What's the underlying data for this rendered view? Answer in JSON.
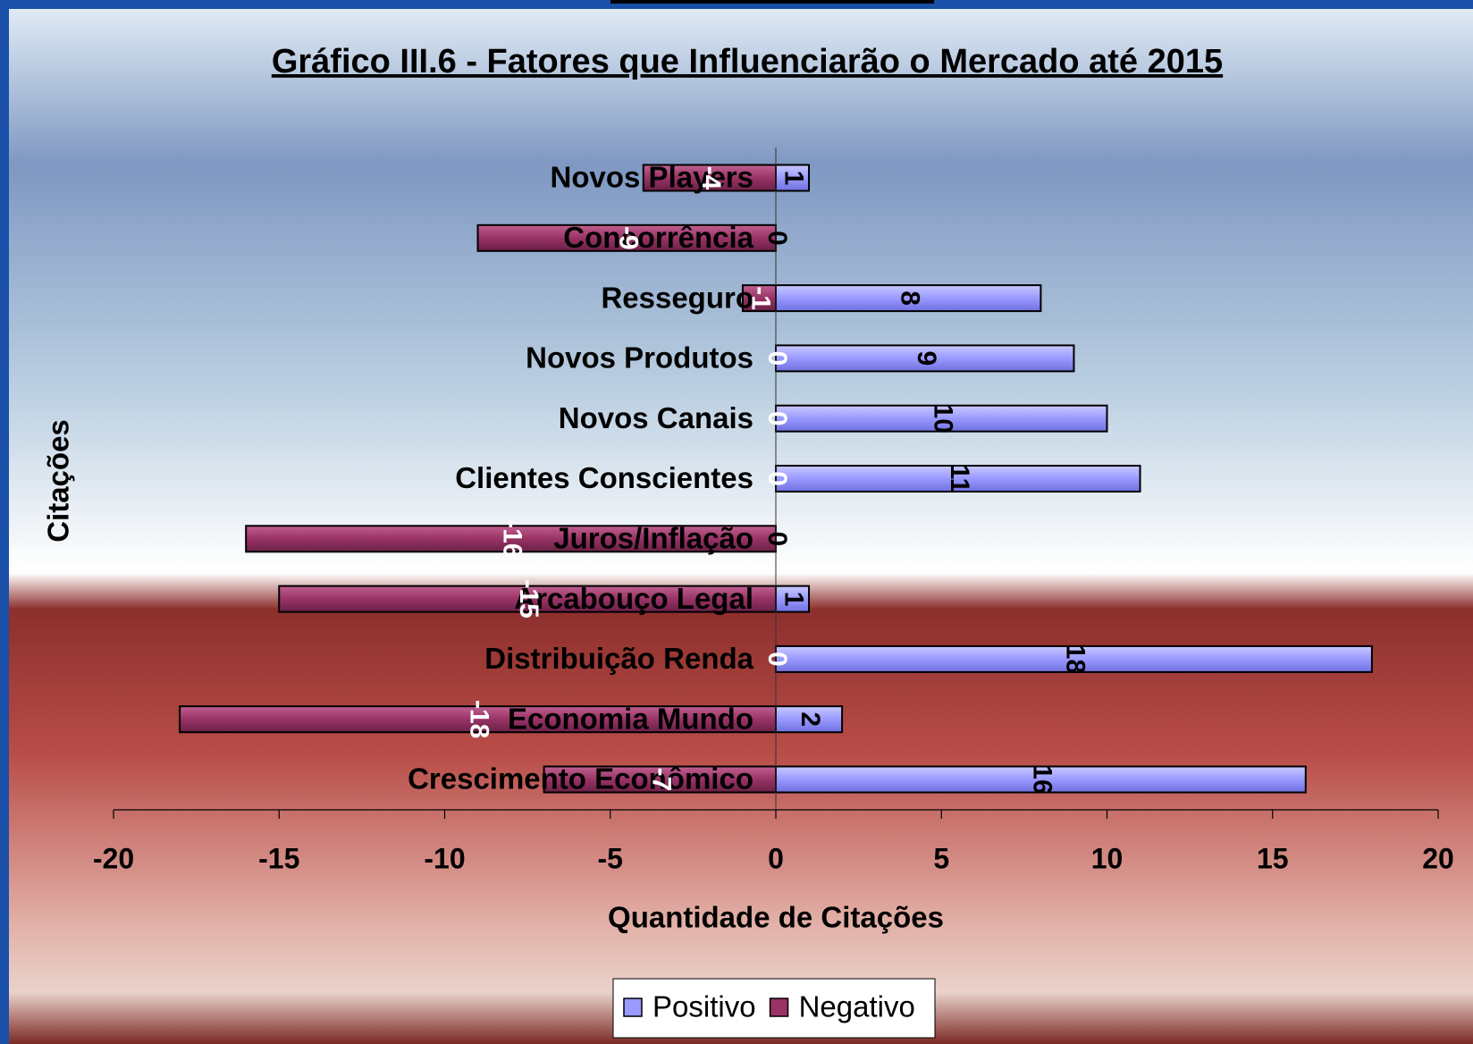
{
  "chart_data": {
    "type": "bar",
    "orientation": "horizontal",
    "stacked": true,
    "title": "Gráfico III.6 - Fatores que Influenciarão o Mercado até 2015",
    "xlabel": "Quantidade de Citações",
    "ylabel": "Citações",
    "categories": [
      "Novos Players",
      "Concorrência",
      "Resseguro",
      "Novos Produtos",
      "Novos Canais",
      "Clientes Conscientes",
      "Juros/Inflação",
      "Arcabouço Legal",
      "Distribuição Renda",
      "Economia Mundo",
      "Crescimento Econômico"
    ],
    "series": [
      {
        "name": "Positivo",
        "color": "#9999ff",
        "values": [
          1,
          0,
          8,
          9,
          10,
          11,
          0,
          1,
          18,
          2,
          16
        ]
      },
      {
        "name": "Negativo",
        "color": "#993366",
        "values": [
          -4,
          -9,
          -1,
          0,
          0,
          0,
          -16,
          -15,
          0,
          -18,
          -7
        ]
      }
    ],
    "xlim": [
      -20,
      20
    ],
    "xticks": [
      -20,
      -15,
      -10,
      -5,
      0,
      5,
      10,
      15,
      20
    ],
    "legend": "bottom"
  }
}
